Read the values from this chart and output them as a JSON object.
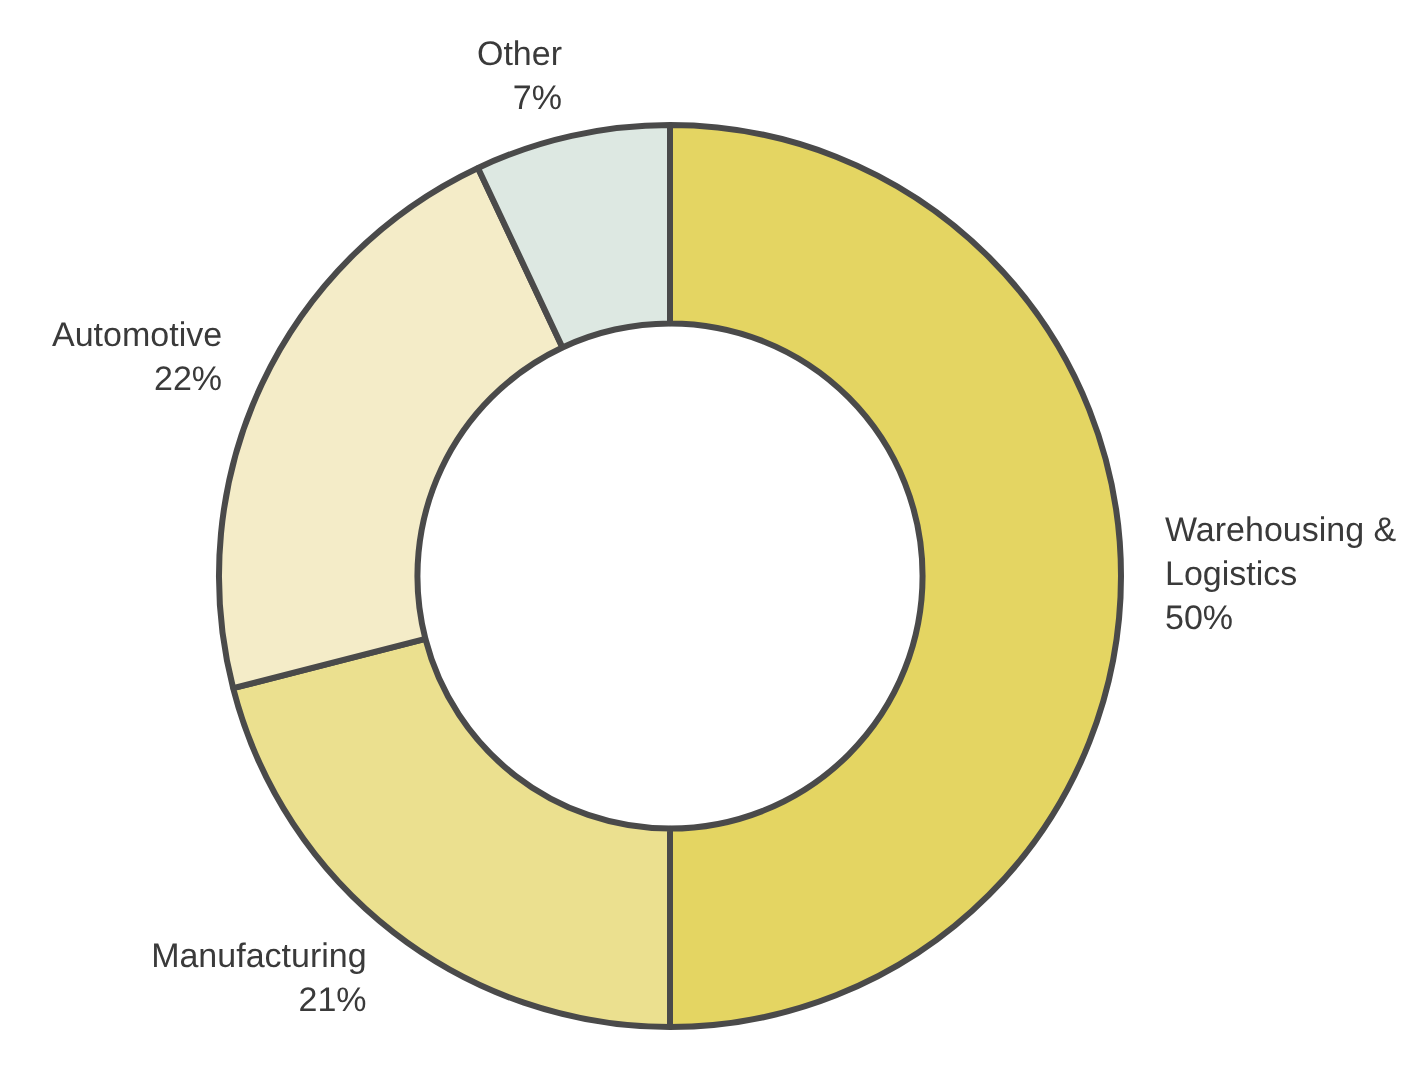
{
  "chart_data": {
    "type": "donut",
    "categories": [
      "Warehousing & Logistics",
      "Manufacturing",
      "Automotive",
      "Other"
    ],
    "values": [
      50,
      21,
      22,
      7
    ],
    "colors": [
      "#e4d562",
      "#ebe08f",
      "#f4ecc8",
      "#dde8e2"
    ],
    "value_labels": [
      "50%",
      "21%",
      "22%",
      "7%"
    ],
    "legend": false
  }
}
